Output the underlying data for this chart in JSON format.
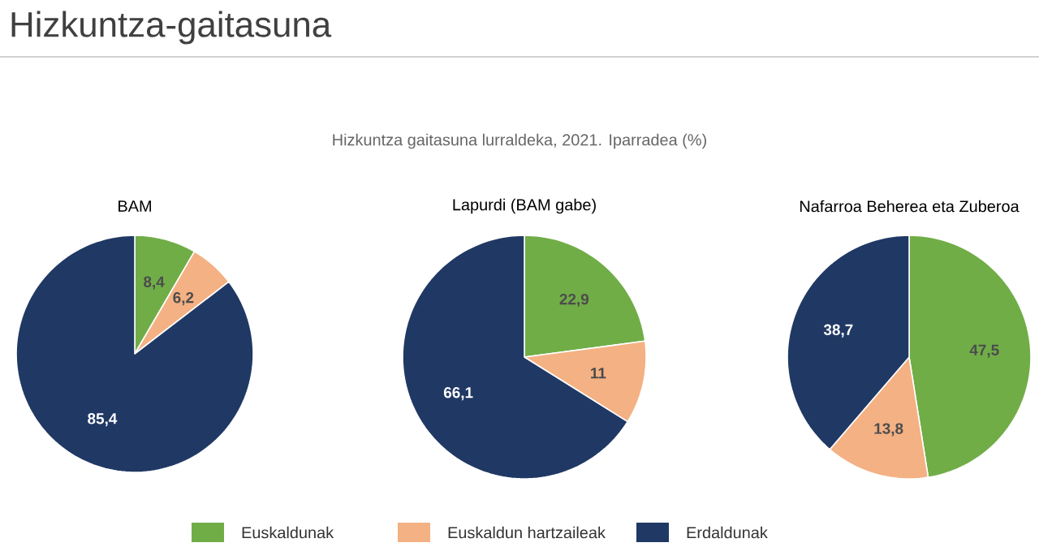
{
  "chart_data": [
    {
      "type": "pie",
      "title": "BAM",
      "annotations": [
        "Hizkuntza-gaitasuna",
        "Hizkuntza gaitasuna lurraldeka, 2021. Iparradea (%)"
      ],
      "legend": "bottom",
      "categories": [
        "Euskaldunak",
        "Euskaldun hartzaileak",
        "Erdaldunak"
      ],
      "values": [
        8.4,
        6.2,
        85.4
      ],
      "value_labels": [
        "8,4",
        "6,2",
        "85,4"
      ],
      "colors": [
        "#70ad47",
        "#f4b183",
        "#203864"
      ]
    },
    {
      "type": "pie",
      "title": "Lapurdi (BAM gabe)",
      "categories": [
        null,
        null,
        null
      ],
      "values": [
        22.9,
        11,
        66.1
      ],
      "value_labels": [
        "22,9",
        "11",
        "66,1"
      ],
      "colors": [
        "#70ad47",
        "#f4b183",
        "#203864"
      ]
    },
    {
      "type": "pie",
      "title": "Nafarroa Beherea eta Zuberoa",
      "categories": [
        null,
        null,
        null
      ],
      "values": [
        47.5,
        13.8,
        38.7
      ],
      "value_labels": [
        "47,5",
        "13,8",
        "38,7"
      ],
      "colors": [
        "#70ad47",
        "#f4b183",
        "#203864"
      ]
    }
  ]
}
